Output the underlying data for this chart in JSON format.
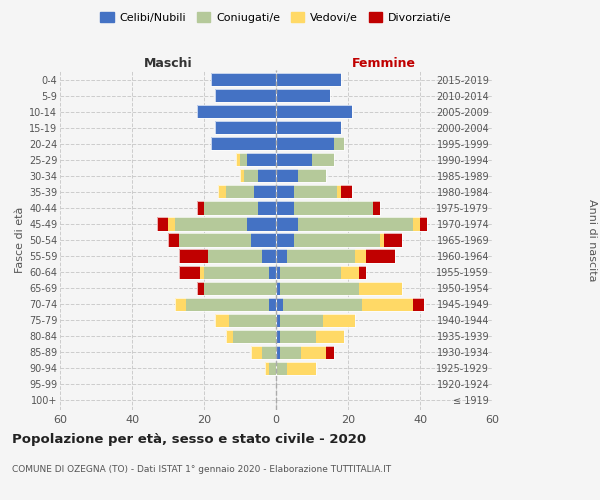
{
  "age_groups": [
    "100+",
    "95-99",
    "90-94",
    "85-89",
    "80-84",
    "75-79",
    "70-74",
    "65-69",
    "60-64",
    "55-59",
    "50-54",
    "45-49",
    "40-44",
    "35-39",
    "30-34",
    "25-29",
    "20-24",
    "15-19",
    "10-14",
    "5-9",
    "0-4"
  ],
  "birth_years": [
    "≤ 1919",
    "1920-1924",
    "1925-1929",
    "1930-1934",
    "1935-1939",
    "1940-1944",
    "1945-1949",
    "1950-1954",
    "1955-1959",
    "1960-1964",
    "1965-1969",
    "1970-1974",
    "1975-1979",
    "1980-1984",
    "1985-1989",
    "1990-1994",
    "1995-1999",
    "2000-2004",
    "2005-2009",
    "2010-2014",
    "2015-2019"
  ],
  "males": {
    "celibi": [
      0,
      0,
      0,
      0,
      0,
      0,
      2,
      0,
      2,
      4,
      7,
      8,
      5,
      6,
      5,
      8,
      18,
      17,
      22,
      17,
      18
    ],
    "coniugati": [
      0,
      0,
      2,
      4,
      12,
      13,
      23,
      20,
      18,
      15,
      20,
      20,
      15,
      8,
      4,
      2,
      0,
      0,
      0,
      0,
      0
    ],
    "vedovi": [
      0,
      0,
      1,
      3,
      2,
      4,
      3,
      0,
      1,
      0,
      0,
      2,
      0,
      2,
      1,
      1,
      0,
      0,
      0,
      0,
      0
    ],
    "divorziati": [
      0,
      0,
      0,
      0,
      0,
      0,
      0,
      2,
      6,
      8,
      3,
      3,
      2,
      0,
      0,
      0,
      0,
      0,
      0,
      0,
      0
    ]
  },
  "females": {
    "nubili": [
      0,
      0,
      0,
      1,
      1,
      1,
      2,
      1,
      1,
      3,
      5,
      6,
      5,
      5,
      6,
      10,
      16,
      18,
      21,
      15,
      18
    ],
    "coniugate": [
      0,
      0,
      3,
      6,
      10,
      12,
      22,
      22,
      17,
      19,
      24,
      32,
      22,
      12,
      8,
      6,
      3,
      0,
      0,
      0,
      0
    ],
    "vedove": [
      0,
      0,
      8,
      7,
      8,
      9,
      14,
      12,
      5,
      3,
      1,
      2,
      0,
      1,
      0,
      0,
      0,
      0,
      0,
      0,
      0
    ],
    "divorziate": [
      0,
      0,
      0,
      2,
      0,
      0,
      3,
      0,
      2,
      8,
      5,
      2,
      2,
      3,
      0,
      0,
      0,
      0,
      0,
      0,
      0
    ]
  },
  "color_celibi": "#4472c4",
  "color_coniugati": "#b5c99a",
  "color_vedovi": "#ffd966",
  "color_divorziati": "#c00000",
  "background_color": "#f5f5f5",
  "grid_color": "#cccccc",
  "title": "Popolazione per età, sesso e stato civile - 2020",
  "subtitle": "COMUNE DI OZEGNA (TO) - Dati ISTAT 1° gennaio 2020 - Elaborazione TUTTITALIA.IT",
  "xlabel_left": "Maschi",
  "xlabel_right": "Femmine",
  "ylabel_left": "Fasce di età",
  "ylabel_right": "Anni di nascita",
  "xlim": 60,
  "legend_labels": [
    "Celibi/Nubili",
    "Coniugati/e",
    "Vedovi/e",
    "Divorziati/e"
  ]
}
